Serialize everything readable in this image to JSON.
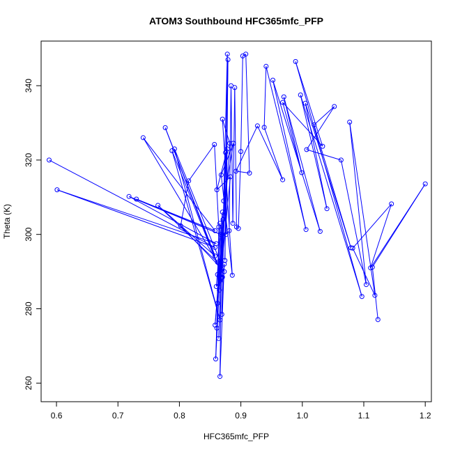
{
  "chart_data": {
    "type": "line",
    "title": "ATOM3 Southbound HFC365mfc_PFP",
    "xlabel": "HFC365mfc_PFP",
    "ylabel": "Theta (K)",
    "xlim": [
      0.575,
      1.21
    ],
    "ylim": [
      255,
      352
    ],
    "x_ticks": [
      0.6,
      0.7,
      0.8,
      0.9,
      1.0,
      1.1,
      1.2
    ],
    "x_tick_labels": [
      "0.6",
      "0.7",
      "0.8",
      "0.9",
      "1.0",
      "1.1",
      "1.2"
    ],
    "y_ticks": [
      260,
      280,
      300,
      320,
      340
    ],
    "y_tick_labels": [
      "260",
      "280",
      "300",
      "320",
      "340"
    ],
    "series_color": "#0000ff",
    "marker": "open-circle",
    "grid": false,
    "x": [
      0.588,
      0.858,
      0.601,
      0.86,
      0.718,
      0.867,
      0.73,
      0.858,
      0.741,
      0.862,
      0.765,
      0.858,
      0.777,
      0.87,
      0.788,
      0.866,
      0.792,
      0.873,
      0.802,
      0.815,
      0.857,
      0.864,
      0.861,
      0.866,
      0.859,
      0.871,
      0.858,
      0.873,
      0.862,
      0.87,
      0.86,
      0.866,
      0.862,
      0.868,
      0.866,
      0.873,
      0.869,
      0.875,
      0.864,
      0.878,
      0.861,
      0.883,
      0.865,
      0.882,
      0.87,
      0.886,
      0.868,
      0.888,
      0.872,
      0.878,
      0.874,
      0.879,
      0.876,
      0.881,
      0.884,
      0.887,
      0.89,
      0.893,
      0.896,
      0.9,
      0.903,
      0.908,
      0.914,
      0.892,
      0.927,
      0.968,
      0.938,
      0.941,
      1.006,
      0.952,
      1.029,
      0.97,
      0.999,
      0.968,
      1.033,
      0.989,
      1.097,
      0.997,
      1.04,
      1.005,
      1.079,
      1.019,
      1.052,
      1.007,
      1.063,
      1.104,
      1.077,
      1.118,
      1.082,
      1.145,
      1.111,
      1.2,
      1.114,
      1.123
    ],
    "y": [
      320.0,
      296.5,
      312.0,
      297.5,
      310.2,
      300.0,
      309.5,
      301.0,
      326.0,
      292.5,
      307.8,
      294.2,
      328.7,
      288.5,
      322.5,
      277.0,
      323.0,
      290.0,
      302.3,
      314.4,
      324.2,
      302.0,
      274.8,
      303.0,
      266.5,
      304.0,
      275.6,
      305.0,
      281.5,
      306.0,
      286.0,
      287.5,
      289.2,
      288.5,
      261.8,
      292.0,
      278.5,
      322.0,
      272.0,
      323.0,
      312.0,
      315.5,
      285.0,
      324.5,
      331.0,
      289.0,
      316.0,
      324.5,
      309.0,
      348.5,
      293.0,
      347.0,
      300.0,
      301.0,
      340.0,
      303.0,
      339.5,
      302.0,
      301.6,
      322.3,
      348.0,
      348.5,
      316.5,
      317.0,
      329.2,
      314.7,
      328.8,
      345.2,
      301.3,
      341.5,
      300.8,
      337.0,
      316.6,
      335.5,
      323.7,
      346.5,
      283.3,
      337.5,
      306.9,
      335.3,
      296.4,
      329.5,
      334.4,
      322.8,
      320.0,
      286.5,
      330.2,
      283.6,
      296.3,
      308.2,
      291.0,
      313.6,
      291.2,
      277.1
    ]
  }
}
